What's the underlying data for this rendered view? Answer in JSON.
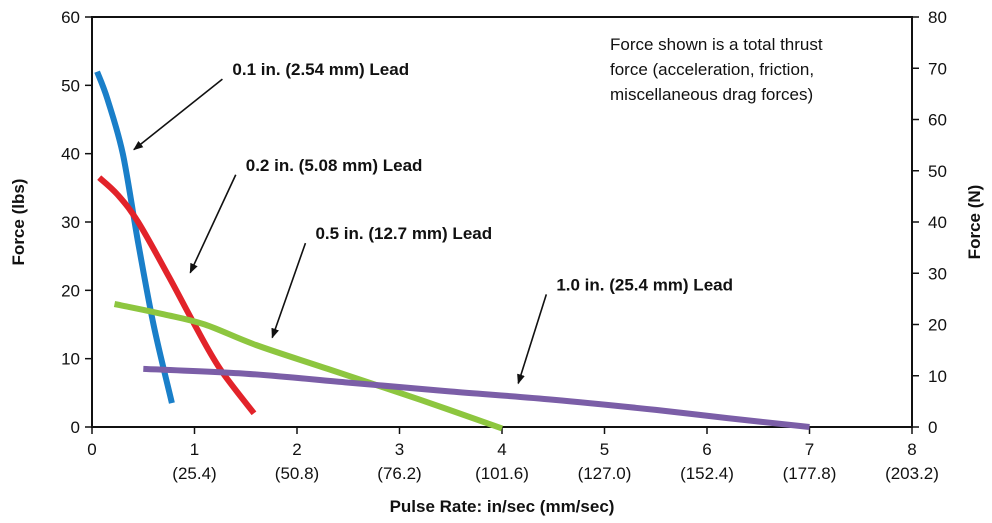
{
  "chart_data": {
    "type": "line",
    "xlabel": "Pulse Rate: in/sec (mm/sec)",
    "ylabel": "Force (lbs)",
    "y2label": "Force (N)",
    "xlim": [
      0,
      8
    ],
    "ylim": [
      0,
      60
    ],
    "y2lim": [
      0,
      80
    ],
    "grid": false,
    "x_ticks": [
      {
        "top": "0",
        "bottom": ""
      },
      {
        "top": "1",
        "bottom": "(25.4)"
      },
      {
        "top": "2",
        "bottom": "(50.8)"
      },
      {
        "top": "3",
        "bottom": "(76.2)"
      },
      {
        "top": "4",
        "bottom": "(101.6)"
      },
      {
        "top": "5",
        "bottom": "(127.0)"
      },
      {
        "top": "6",
        "bottom": "(152.4)"
      },
      {
        "top": "7",
        "bottom": "(177.8)"
      },
      {
        "top": "8",
        "bottom": "(203.2)"
      }
    ],
    "y_ticks": [
      "0",
      "10",
      "20",
      "30",
      "40",
      "50",
      "60"
    ],
    "y2_ticks": [
      "0",
      "10",
      "20",
      "30",
      "40",
      "50",
      "60",
      "70",
      "80"
    ],
    "note": [
      "Force shown is a total thrust",
      "force (acceleration, friction,",
      "miscellaneous drag forces)"
    ],
    "series": [
      {
        "name": "0.1 in. (2.54 mm) Lead",
        "color": "#1a7fc9",
        "x": [
          0.05,
          0.15,
          0.3,
          0.45,
          0.6,
          0.78
        ],
        "y": [
          52,
          48,
          40,
          27,
          15,
          3.5
        ],
        "label_anchor": [
          0.35,
          40
        ]
      },
      {
        "name": "0.2 in. (5.08 mm) Lead",
        "color": "#e2232a",
        "x": [
          0.07,
          0.25,
          0.45,
          0.75,
          1.0,
          1.25,
          1.58
        ],
        "y": [
          36.5,
          34,
          30,
          22,
          15,
          8.5,
          2
        ],
        "label_anchor": [
          0.9,
          22
        ]
      },
      {
        "name": "0.5 in. (12.7 mm) Lead",
        "color": "#8dc63f",
        "x": [
          0.22,
          0.7,
          1.1,
          1.6,
          2.3,
          3.2,
          4.0
        ],
        "y": [
          18,
          16.5,
          15,
          12,
          8.5,
          4,
          -0.2
        ],
        "label_anchor": [
          1.7,
          12.5
        ]
      },
      {
        "name": "1.0 in. (25.4 mm) Lead",
        "color": "#7b5ea7",
        "x": [
          0.5,
          1.5,
          2.5,
          3.5,
          4.5,
          5.5,
          6.2,
          7.0
        ],
        "y": [
          8.5,
          7.8,
          6.5,
          5.2,
          4,
          2.5,
          1.3,
          0
        ],
        "label_anchor": [
          4.1,
          5.8
        ]
      }
    ],
    "callouts": [
      {
        "text": "0.1 in. (2.54 mm) Lead",
        "text_pos": [
          1.37,
          51.5
        ],
        "arrow_to": [
          0.35,
          40
        ]
      },
      {
        "text": "0.2 in. (5.08 mm) Lead",
        "text_pos": [
          1.5,
          37.5
        ],
        "arrow_to": [
          0.9,
          22
        ]
      },
      {
        "text": "0.5 in. (12.7 mm) Lead",
        "text_pos": [
          2.18,
          27.5
        ],
        "arrow_to": [
          1.7,
          12.5
        ]
      },
      {
        "text": "1.0 in. (25.4 mm) Lead",
        "text_pos": [
          4.53,
          20
        ],
        "arrow_to": [
          4.1,
          5.8
        ]
      }
    ]
  }
}
